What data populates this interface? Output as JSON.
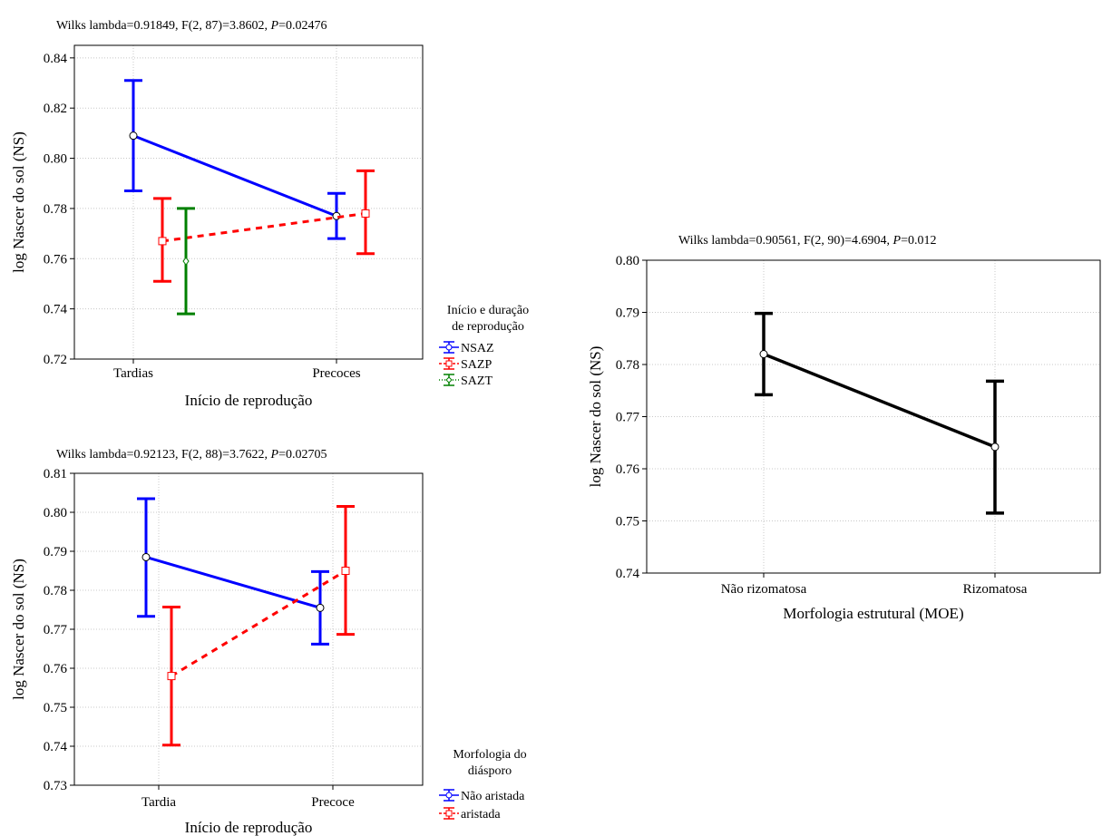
{
  "chart_data": [
    {
      "type": "line",
      "title_prefix": "Wilks lambda=0.91849, F(2, 87)=3.8602, ",
      "title_p": "P",
      "title_suffix": "=0.02476",
      "xlabel": "Início de reprodução",
      "ylabel": "log Nascer do sol (NS)",
      "categories": [
        "Tardias",
        "Precoces"
      ],
      "ylim": [
        0.72,
        0.845
      ],
      "yticks": [
        "0.72",
        "0.74",
        "0.76",
        "0.78",
        "0.80",
        "0.82",
        "0.84"
      ],
      "grid": true,
      "legend_title": [
        "Início e duração",
        "de reprodução"
      ],
      "series": [
        {
          "name": "NSAZ",
          "color": "#0000ff",
          "dash": "solid",
          "marker": "circle",
          "values": [
            0.809,
            0.777
          ],
          "lower": [
            0.787,
            0.768
          ],
          "upper": [
            0.831,
            0.786
          ]
        },
        {
          "name": "SAZP",
          "color": "#ff0000",
          "dash": "dashed",
          "marker": "square",
          "values": [
            0.767,
            0.778
          ],
          "lower": [
            0.751,
            0.762
          ],
          "upper": [
            0.784,
            0.795
          ]
        },
        {
          "name": "SAZT",
          "color": "#008000",
          "dash": "dotted",
          "marker": "diamond",
          "values": [
            0.759,
            null
          ],
          "lower": [
            0.738,
            null
          ],
          "upper": [
            0.78,
            null
          ]
        }
      ]
    },
    {
      "type": "line",
      "title_prefix": "Wilks lambda=0.92123, F(2, 88)=3.7622, ",
      "title_p": "P",
      "title_suffix": "=0.02705",
      "xlabel": "Início de reprodução",
      "ylabel": "log Nascer do sol (NS)",
      "categories": [
        "Tardia",
        "Precoce"
      ],
      "ylim": [
        0.73,
        0.81
      ],
      "yticks": [
        "0.73",
        "0.74",
        "0.75",
        "0.76",
        "0.77",
        "0.78",
        "0.79",
        "0.80",
        "0.81"
      ],
      "grid": true,
      "legend_title": [
        "Morfologia do",
        "diásporo"
      ],
      "series": [
        {
          "name": "Não aristada",
          "color": "#0000ff",
          "dash": "solid",
          "marker": "circle",
          "values": [
            0.7885,
            0.7755
          ],
          "lower": [
            0.7733,
            0.7662
          ],
          "upper": [
            0.8035,
            0.7848
          ]
        },
        {
          "name": "aristada",
          "color": "#ff0000",
          "dash": "dashed",
          "marker": "square",
          "values": [
            0.758,
            0.785
          ],
          "lower": [
            0.7403,
            0.7687
          ],
          "upper": [
            0.7757,
            0.8015
          ]
        }
      ]
    },
    {
      "type": "line",
      "title_prefix": "Wilks lambda=0.90561, F(2, 90)=4.6904, ",
      "title_p": "P",
      "title_suffix": "=0.012",
      "xlabel": "Morfologia estrutural (MOE)",
      "ylabel": "log Nascer do sol (NS)",
      "categories": [
        "Não rizomatosa",
        "Rizomatosa"
      ],
      "ylim": [
        0.74,
        0.8
      ],
      "yticks": [
        "0.74",
        "0.75",
        "0.76",
        "0.77",
        "0.78",
        "0.79",
        "0.80"
      ],
      "grid": true,
      "series": [
        {
          "color": "#000000",
          "dash": "solid",
          "marker": "circle",
          "values": [
            0.782,
            0.7642
          ],
          "lower": [
            0.7742,
            0.7515
          ],
          "upper": [
            0.7898,
            0.7768
          ]
        }
      ]
    }
  ]
}
